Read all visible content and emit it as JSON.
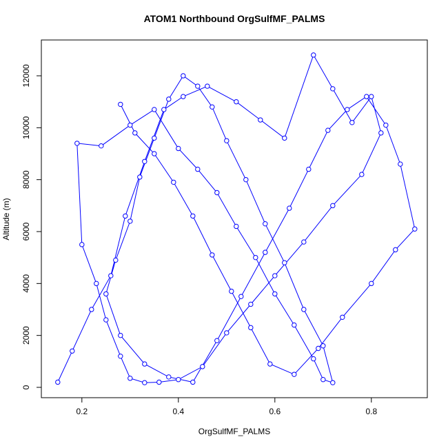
{
  "chart_data": {
    "type": "line-points",
    "title": "ATOM1 Northbound OrgSulfMF_PALMS",
    "x_label": "OrgSulfMF_PALMS",
    "y_label": "Altitude (m)",
    "color": "#0000ff",
    "xlim": [
      0.116,
      0.916
    ],
    "ylim": [
      -398,
      13380
    ],
    "xticks": [
      0.2,
      0.4,
      0.6,
      0.8
    ],
    "yticks": [
      0,
      2000,
      4000,
      6000,
      8000,
      10000,
      12000
    ],
    "x": [
      0.15,
      0.18,
      0.22,
      0.26,
      0.29,
      0.33,
      0.37,
      0.41,
      0.46,
      0.52,
      0.57,
      0.62,
      0.68,
      0.72,
      0.76,
      0.8,
      0.82,
      0.78,
      0.72,
      0.66,
      0.6,
      0.55,
      0.5,
      0.45,
      0.4,
      0.36,
      0.33,
      0.3,
      0.28,
      0.25,
      0.23,
      0.2,
      0.19,
      0.24,
      0.3,
      0.35,
      0.4,
      0.44,
      0.48,
      0.52,
      0.56,
      0.6,
      0.64,
      0.68,
      0.7,
      0.72,
      0.7,
      0.66,
      0.62,
      0.58,
      0.54,
      0.5,
      0.47,
      0.44,
      0.41,
      0.38,
      0.35,
      0.32,
      0.3,
      0.27,
      0.25,
      0.28,
      0.33,
      0.38,
      0.43,
      0.48,
      0.53,
      0.58,
      0.63,
      0.67,
      0.71,
      0.75,
      0.79,
      0.83,
      0.86,
      0.89,
      0.85,
      0.8,
      0.74,
      0.69,
      0.64,
      0.59,
      0.55,
      0.51,
      0.47,
      0.43,
      0.39,
      0.35,
      0.31,
      0.28
    ],
    "values": [
      200,
      1400,
      3000,
      4300,
      6600,
      8700,
      10700,
      11200,
      11600,
      11000,
      10300,
      9600,
      12800,
      11500,
      10200,
      11200,
      9800,
      8200,
      7000,
      5600,
      4300,
      3200,
      2100,
      800,
      300,
      200,
      180,
      350,
      1200,
      2600,
      4000,
      5500,
      9400,
      9300,
      10100,
      10700,
      9200,
      8400,
      7500,
      6200,
      5000,
      3600,
      2400,
      1100,
      300,
      180,
      1600,
      3000,
      4800,
      6300,
      8000,
      9500,
      10800,
      11600,
      12000,
      11100,
      9600,
      8100,
      6400,
      4900,
      3600,
      2000,
      900,
      400,
      200,
      1800,
      3500,
      5200,
      6900,
      8400,
      9900,
      10700,
      11200,
      10100,
      8600,
      6100,
      5300,
      4000,
      2700,
      1500,
      500,
      900,
      2300,
      3700,
      5100,
      6600,
      7900,
      9000,
      9800,
      10900
    ]
  }
}
